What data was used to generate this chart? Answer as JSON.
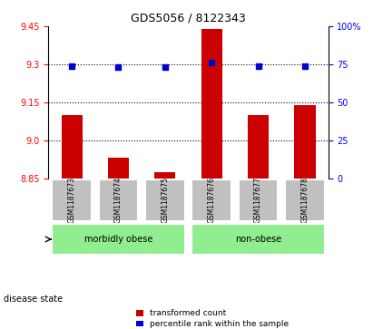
{
  "title": "GDS5056 / 8122343",
  "samples": [
    "GSM1187673",
    "GSM1187674",
    "GSM1187675",
    "GSM1187676",
    "GSM1187677",
    "GSM1187678"
  ],
  "bar_values": [
    9.1,
    8.93,
    8.875,
    9.44,
    9.1,
    9.14
  ],
  "percentile_values": [
    74,
    73,
    73,
    76,
    74,
    74
  ],
  "ymin": 8.85,
  "ymax": 9.45,
  "y2min": 0,
  "y2max": 100,
  "yticks_left": [
    8.85,
    9.0,
    9.15,
    9.3,
    9.45
  ],
  "yticks_right": [
    0,
    25,
    50,
    75,
    100
  ],
  "hlines": [
    9.0,
    9.15,
    9.3
  ],
  "bar_color": "#CC0000",
  "dot_color": "#0000CC",
  "group1_label": "morbidly obese",
  "group2_label": "non-obese",
  "group1_indices": [
    0,
    1,
    2
  ],
  "group2_indices": [
    3,
    4,
    5
  ],
  "group_color": "#90EE90",
  "tick_bg_color": "#C0C0C0",
  "disease_state_label": "disease state",
  "legend_bar_label": "transformed count",
  "legend_dot_label": "percentile rank within the sample"
}
